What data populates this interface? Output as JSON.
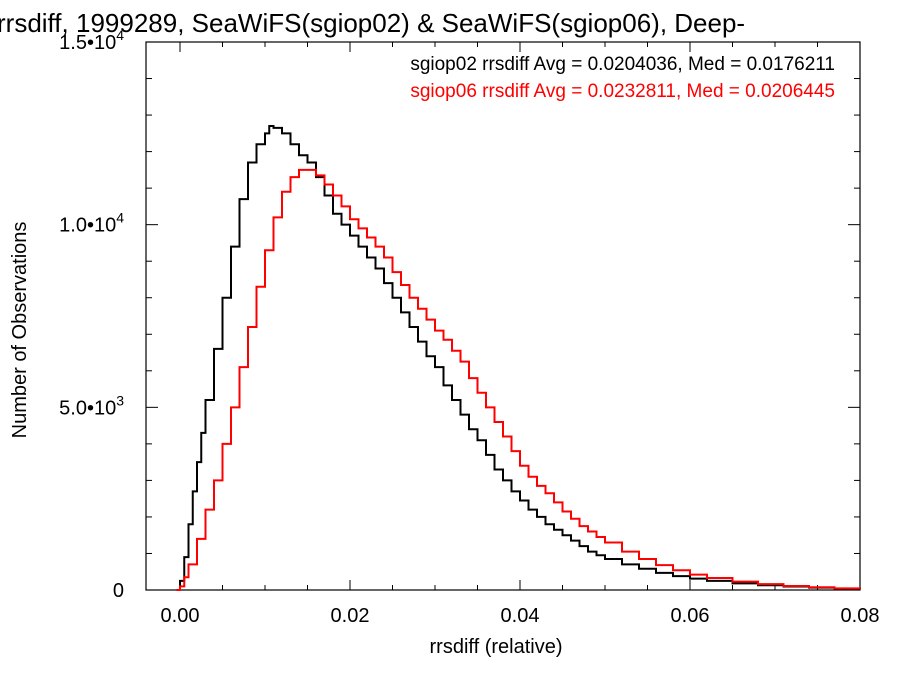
{
  "chart_data": {
    "type": "line",
    "step": true,
    "title": "rrsdiff, 1999289, SeaWiFS(sgiop02) & SeaWiFS(sgiop06), Deep-",
    "xlabel": "rrsdiff (relative)",
    "ylabel": "Number of Observations",
    "xlim": [
      -0.004,
      0.08
    ],
    "ylim": [
      0,
      15000
    ],
    "x_ticks": [
      {
        "value": 0.0,
        "label": "0.00"
      },
      {
        "value": 0.02,
        "label": "0.02"
      },
      {
        "value": 0.04,
        "label": "0.04"
      },
      {
        "value": 0.06,
        "label": "0.06"
      },
      {
        "value": 0.08,
        "label": "0.08"
      }
    ],
    "y_ticks": [
      {
        "value": 0,
        "mant": "0",
        "exp": ""
      },
      {
        "value": 5000,
        "mant": "5.0•10",
        "exp": "3"
      },
      {
        "value": 10000,
        "mant": "1.0•10",
        "exp": "4"
      },
      {
        "value": 15000,
        "mant": "1.5•10",
        "exp": "4"
      }
    ],
    "legend_position": "top-right",
    "series": [
      {
        "name": "sgiop02",
        "color": "#000000",
        "legend": "sgiop02 rrsdiff Avg = 0.0204036, Med = 0.0176211",
        "points": [
          [
            -0.0004,
            0
          ],
          [
            0.0,
            250
          ],
          [
            0.0005,
            900
          ],
          [
            0.001,
            1800
          ],
          [
            0.0015,
            2700
          ],
          [
            0.002,
            3500
          ],
          [
            0.0025,
            4300
          ],
          [
            0.003,
            5200
          ],
          [
            0.004,
            6600
          ],
          [
            0.005,
            8000
          ],
          [
            0.006,
            9400
          ],
          [
            0.007,
            10700
          ],
          [
            0.008,
            11700
          ],
          [
            0.009,
            12200
          ],
          [
            0.01,
            12500
          ],
          [
            0.0105,
            12700
          ],
          [
            0.011,
            12650
          ],
          [
            0.012,
            12500
          ],
          [
            0.013,
            12200
          ],
          [
            0.014,
            11900
          ],
          [
            0.015,
            11700
          ],
          [
            0.016,
            11300
          ],
          [
            0.017,
            10800
          ],
          [
            0.018,
            10300
          ],
          [
            0.019,
            10000
          ],
          [
            0.02,
            9700
          ],
          [
            0.021,
            9400
          ],
          [
            0.022,
            9100
          ],
          [
            0.023,
            8800
          ],
          [
            0.024,
            8400
          ],
          [
            0.025,
            8000
          ],
          [
            0.026,
            7600
          ],
          [
            0.027,
            7200
          ],
          [
            0.028,
            6800
          ],
          [
            0.029,
            6400
          ],
          [
            0.03,
            6100
          ],
          [
            0.031,
            5600
          ],
          [
            0.032,
            5200
          ],
          [
            0.033,
            4800
          ],
          [
            0.034,
            4400
          ],
          [
            0.035,
            4100
          ],
          [
            0.036,
            3700
          ],
          [
            0.037,
            3300
          ],
          [
            0.038,
            3000
          ],
          [
            0.039,
            2700
          ],
          [
            0.04,
            2450
          ],
          [
            0.041,
            2200
          ],
          [
            0.042,
            2000
          ],
          [
            0.043,
            1800
          ],
          [
            0.044,
            1650
          ],
          [
            0.045,
            1500
          ],
          [
            0.046,
            1350
          ],
          [
            0.047,
            1200
          ],
          [
            0.048,
            1050
          ],
          [
            0.049,
            950
          ],
          [
            0.05,
            850
          ],
          [
            0.052,
            700
          ],
          [
            0.054,
            580
          ],
          [
            0.056,
            470
          ],
          [
            0.058,
            380
          ],
          [
            0.06,
            310
          ],
          [
            0.062,
            250
          ],
          [
            0.065,
            180
          ],
          [
            0.068,
            130
          ],
          [
            0.071,
            95
          ],
          [
            0.074,
            65
          ],
          [
            0.077,
            40
          ],
          [
            0.08,
            25
          ]
        ]
      },
      {
        "name": "sgiop06",
        "color": "#ff0000",
        "legend": "sgiop06 rrsdiff Avg = 0.0232811, Med = 0.0206445",
        "points": [
          [
            -0.0004,
            0
          ],
          [
            0.0,
            100
          ],
          [
            0.0005,
            350
          ],
          [
            0.001,
            700
          ],
          [
            0.002,
            1400
          ],
          [
            0.003,
            2200
          ],
          [
            0.004,
            3000
          ],
          [
            0.005,
            4000
          ],
          [
            0.006,
            5000
          ],
          [
            0.007,
            6100
          ],
          [
            0.008,
            7200
          ],
          [
            0.009,
            8300
          ],
          [
            0.01,
            9300
          ],
          [
            0.011,
            10200
          ],
          [
            0.012,
            10900
          ],
          [
            0.013,
            11300
          ],
          [
            0.014,
            11500
          ],
          [
            0.015,
            11500
          ],
          [
            0.016,
            11350
          ],
          [
            0.017,
            11100
          ],
          [
            0.018,
            10800
          ],
          [
            0.019,
            10500
          ],
          [
            0.02,
            10150
          ],
          [
            0.021,
            9900
          ],
          [
            0.022,
            9650
          ],
          [
            0.023,
            9400
          ],
          [
            0.024,
            9100
          ],
          [
            0.025,
            8700
          ],
          [
            0.026,
            8350
          ],
          [
            0.027,
            8000
          ],
          [
            0.028,
            7700
          ],
          [
            0.029,
            7400
          ],
          [
            0.03,
            7100
          ],
          [
            0.031,
            6850
          ],
          [
            0.032,
            6550
          ],
          [
            0.033,
            6250
          ],
          [
            0.034,
            5800
          ],
          [
            0.035,
            5400
          ],
          [
            0.036,
            5000
          ],
          [
            0.037,
            4600
          ],
          [
            0.038,
            4200
          ],
          [
            0.039,
            3800
          ],
          [
            0.04,
            3400
          ],
          [
            0.041,
            3100
          ],
          [
            0.042,
            2850
          ],
          [
            0.043,
            2650
          ],
          [
            0.044,
            2400
          ],
          [
            0.045,
            2150
          ],
          [
            0.046,
            1950
          ],
          [
            0.047,
            1750
          ],
          [
            0.048,
            1600
          ],
          [
            0.049,
            1450
          ],
          [
            0.05,
            1300
          ],
          [
            0.052,
            1050
          ],
          [
            0.054,
            850
          ],
          [
            0.056,
            680
          ],
          [
            0.058,
            540
          ],
          [
            0.06,
            420
          ],
          [
            0.062,
            330
          ],
          [
            0.065,
            230
          ],
          [
            0.068,
            160
          ],
          [
            0.071,
            110
          ],
          [
            0.074,
            75
          ],
          [
            0.077,
            45
          ],
          [
            0.08,
            30
          ]
        ]
      }
    ]
  }
}
